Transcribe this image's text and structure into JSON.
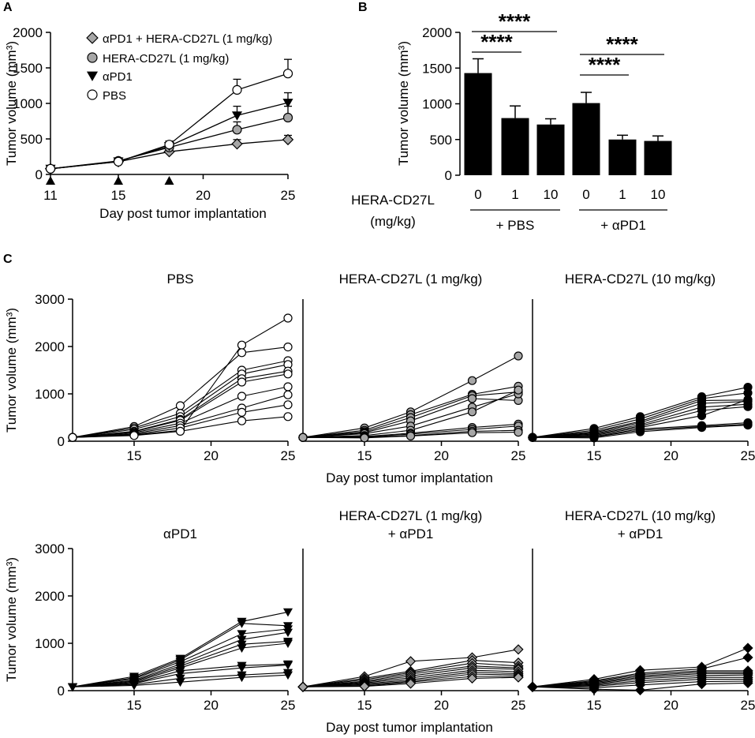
{
  "colors": {
    "black": "#000000",
    "white": "#ffffff",
    "gray": "#a6a6a6",
    "diamond_gray": "#a6a6a6"
  },
  "panel_letters": {
    "a": "A",
    "b": "B",
    "c": "C"
  },
  "chart_data": [
    {
      "id": "A",
      "type": "line",
      "xlabel": "Day post tumor implantation",
      "ylabel": "Tumor volume (mm³)",
      "ylim": [
        0,
        2000
      ],
      "xlim": [
        11,
        25
      ],
      "xticks": [
        11,
        15,
        20,
        25
      ],
      "yticks": [
        0,
        500,
        1000,
        1500,
        2000
      ],
      "treatment_days": [
        11,
        15,
        18
      ],
      "x": [
        11,
        15,
        18,
        22,
        25
      ],
      "series": [
        {
          "name": "αPD1 + HERA-CD27L (1 mg/kg)",
          "marker": "diamond-gray",
          "values": [
            80,
            180,
            320,
            430,
            490
          ],
          "errors": [
            0,
            20,
            30,
            60,
            60
          ]
        },
        {
          "name": "HERA-CD27L (1 mg/kg)",
          "marker": "circle-gray",
          "values": [
            80,
            190,
            380,
            630,
            800
          ],
          "errors": [
            0,
            20,
            40,
            110,
            160
          ]
        },
        {
          "name": "αPD1",
          "marker": "triangle-black",
          "values": [
            80,
            185,
            400,
            830,
            1010
          ],
          "errors": [
            0,
            20,
            40,
            130,
            140
          ]
        },
        {
          "name": "PBS",
          "marker": "circle-white",
          "values": [
            80,
            180,
            420,
            1190,
            1420
          ],
          "errors": [
            0,
            20,
            50,
            150,
            200
          ]
        }
      ]
    },
    {
      "id": "B",
      "type": "bar",
      "ylabel": "Tumor volume (mm³)",
      "ylim": [
        0,
        2000
      ],
      "yticks": [
        0,
        500,
        1000,
        1500,
        2000
      ],
      "dose_label_line1": "HERA-CD27L",
      "dose_label_line2": "(mg/kg)",
      "categories": [
        "0",
        "1",
        "10",
        "0",
        "1",
        "10"
      ],
      "values": [
        1430,
        800,
        710,
        1010,
        500,
        480
      ],
      "errors": [
        200,
        170,
        80,
        150,
        60,
        70
      ],
      "groups": [
        "+ PBS",
        "+ αPD1"
      ],
      "significance": [
        {
          "from": 0,
          "to": 1,
          "label": "****"
        },
        {
          "from": 0,
          "to": 2,
          "label": "****"
        },
        {
          "from": 3,
          "to": 4,
          "label": "****"
        },
        {
          "from": 3,
          "to": 5,
          "label": "****"
        }
      ]
    },
    {
      "id": "C",
      "type": "line",
      "xlabel": "Day post tumor implantation",
      "ylabel": "Tumor volume (mm³)",
      "ylim": [
        0,
        3000
      ],
      "xlim": [
        11,
        25
      ],
      "xticks": [
        15,
        20,
        25
      ],
      "yticks": [
        0,
        1000,
        2000,
        3000
      ],
      "x": [
        11,
        15,
        18,
        22,
        25
      ],
      "panels": [
        {
          "title": [
            "PBS"
          ],
          "marker": "circle-white",
          "series": [
            [
              80,
              130,
              230,
              2030,
              2600
            ],
            [
              80,
              310,
              750,
              1870,
              1990
            ],
            [
              80,
              280,
              590,
              1500,
              1700
            ],
            [
              80,
              250,
              520,
              1420,
              1620
            ],
            [
              80,
              210,
              460,
              1320,
              1480
            ],
            [
              80,
              200,
              440,
              1250,
              1420
            ],
            [
              80,
              180,
              380,
              950,
              1150
            ],
            [
              80,
              160,
              330,
              700,
              980
            ],
            [
              80,
              140,
              280,
              610,
              770
            ],
            [
              80,
              120,
              210,
              430,
              520
            ]
          ]
        },
        {
          "title": [
            "HERA-CD27L (1 mg/kg)"
          ],
          "marker": "circle-gray",
          "series": [
            [
              80,
              280,
              620,
              1280,
              1800
            ],
            [
              80,
              230,
              560,
              990,
              1160
            ],
            [
              80,
              200,
              500,
              960,
              1040
            ],
            [
              80,
              180,
              430,
              900,
              860
            ],
            [
              80,
              160,
              320,
              720,
              1000
            ],
            [
              80,
              120,
              230,
              620,
              1080
            ],
            [
              80,
              100,
              170,
              290,
              360
            ],
            [
              80,
              90,
              150,
              250,
              320
            ],
            [
              80,
              80,
              120,
              210,
              230
            ],
            [
              80,
              70,
              110,
              180,
              190
            ]
          ]
        },
        {
          "title": [
            "HERA-CD27L (10 mg/kg)"
          ],
          "marker": "circle-black",
          "series": [
            [
              80,
              270,
              520,
              940,
              1140
            ],
            [
              80,
              230,
              470,
              900,
              1020
            ],
            [
              80,
              200,
              420,
              860,
              870
            ],
            [
              80,
              180,
              390,
              800,
              840
            ],
            [
              80,
              160,
              350,
              720,
              780
            ],
            [
              80,
              140,
              320,
              650,
              730
            ],
            [
              80,
              120,
              290,
              540,
              880
            ],
            [
              80,
              100,
              260,
              330,
              390
            ],
            [
              80,
              90,
              230,
              310,
              360
            ],
            [
              80,
              70,
              200,
              290,
              340
            ]
          ]
        },
        {
          "title": [
            "αPD1"
          ],
          "marker": "triangle-black",
          "series": [
            [
              80,
              300,
              680,
              1460,
              1660
            ],
            [
              80,
              270,
              650,
              1420,
              1370
            ],
            [
              80,
              250,
              610,
              1200,
              1300
            ],
            [
              80,
              220,
              560,
              1080,
              1230
            ],
            [
              80,
              200,
              520,
              980,
              1040
            ],
            [
              80,
              180,
              480,
              900,
              1000
            ],
            [
              80,
              160,
              420,
              530,
              560
            ],
            [
              80,
              150,
              360,
              480,
              540
            ],
            [
              80,
              130,
              260,
              330,
              380
            ],
            [
              80,
              110,
              180,
              280,
              330
            ]
          ]
        },
        {
          "title": [
            "HERA-CD27L (1 mg/kg)",
            "+ αPD1"
          ],
          "marker": "diamond-gray",
          "series": [
            [
              80,
              300,
              620,
              700,
              870
            ],
            [
              80,
              260,
              410,
              640,
              590
            ],
            [
              80,
              230,
              380,
              580,
              520
            ],
            [
              80,
              200,
              350,
              520,
              480
            ],
            [
              80,
              180,
              310,
              480,
              450
            ],
            [
              80,
              160,
              270,
              430,
              400
            ],
            [
              80,
              140,
              230,
              390,
              360
            ],
            [
              80,
              120,
              200,
              350,
              330
            ],
            [
              80,
              100,
              180,
              300,
              300
            ],
            [
              80,
              90,
              150,
              260,
              280
            ]
          ]
        },
        {
          "title": [
            "HERA-CD27L (10 mg/kg)",
            "+ αPD1"
          ],
          "marker": "diamond-black",
          "series": [
            [
              80,
              240,
              430,
              500,
              900
            ],
            [
              80,
              210,
              370,
              460,
              700
            ],
            [
              80,
              190,
              340,
              420,
              420
            ],
            [
              80,
              170,
              310,
              390,
              390
            ],
            [
              80,
              150,
              280,
              360,
              360
            ],
            [
              80,
              130,
              250,
              320,
              330
            ],
            [
              80,
              110,
              210,
              280,
              280
            ],
            [
              80,
              90,
              170,
              240,
              240
            ],
            [
              80,
              60,
              120,
              190,
              200
            ],
            [
              80,
              30,
              10,
              140,
              160
            ]
          ]
        }
      ]
    }
  ]
}
